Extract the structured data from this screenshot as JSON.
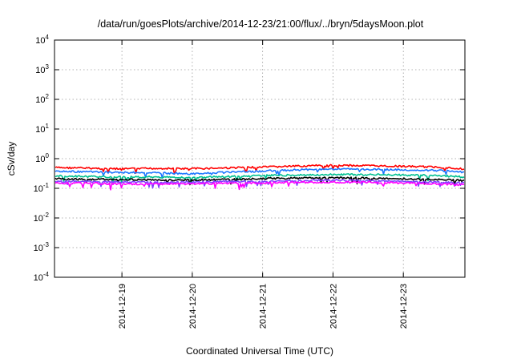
{
  "chart_data": {
    "type": "line",
    "title": "/data/run/goesPlots/archive/2014-12-23/21:00/flux/../bryn/5daysMoon.plot",
    "xlabel": "Coordinated Universal Time (UTC)",
    "ylabel": "cSv/day",
    "yscale": "log",
    "ylim": [
      0.0001,
      10000
    ],
    "y_ticks": [
      {
        "value": 0.0001,
        "base": "10",
        "exp": "-4"
      },
      {
        "value": 0.001,
        "base": "10",
        "exp": "-3"
      },
      {
        "value": 0.01,
        "base": "10",
        "exp": "-2"
      },
      {
        "value": 0.1,
        "base": "10",
        "exp": "-1"
      },
      {
        "value": 1,
        "base": "10",
        "exp": "0"
      },
      {
        "value": 10,
        "base": "10",
        "exp": "1"
      },
      {
        "value": 100,
        "base": "10",
        "exp": "2"
      },
      {
        "value": 1000,
        "base": "10",
        "exp": "3"
      },
      {
        "value": 10000,
        "base": "10",
        "exp": "4"
      }
    ],
    "xlim": [
      "2014-12-18T01:00",
      "2014-12-23T21:00"
    ],
    "x_ticks": [
      "2014-12-19",
      "2014-12-20",
      "2014-12-21",
      "2014-12-22",
      "2014-12-23"
    ],
    "grid": true,
    "x": [
      "2014-12-18T01:00",
      "2014-12-18T12:00",
      "2014-12-19T00:00",
      "2014-12-19T12:00",
      "2014-12-20T00:00",
      "2014-12-20T12:00",
      "2014-12-21T00:00",
      "2014-12-21T12:00",
      "2014-12-22T00:00",
      "2014-12-22T12:00",
      "2014-12-23T00:00",
      "2014-12-23T12:00",
      "2014-12-23T21:00"
    ],
    "series": [
      {
        "color": "#ff0000",
        "values": [
          0.5,
          0.48,
          0.45,
          0.47,
          0.46,
          0.49,
          0.52,
          0.56,
          0.6,
          0.58,
          0.55,
          0.52,
          0.45
        ]
      },
      {
        "color": "#1e78ff",
        "values": [
          0.38,
          0.36,
          0.34,
          0.33,
          0.31,
          0.35,
          0.38,
          0.42,
          0.45,
          0.44,
          0.42,
          0.4,
          0.35
        ]
      },
      {
        "color": "#00c090",
        "values": [
          0.26,
          0.25,
          0.24,
          0.24,
          0.23,
          0.25,
          0.27,
          0.28,
          0.29,
          0.29,
          0.28,
          0.27,
          0.24
        ]
      },
      {
        "color": "#000000",
        "values": [
          0.21,
          0.2,
          0.2,
          0.19,
          0.19,
          0.2,
          0.21,
          0.22,
          0.23,
          0.22,
          0.21,
          0.2,
          0.18
        ]
      },
      {
        "color": "#8040ff",
        "values": [
          0.17,
          0.17,
          0.16,
          0.16,
          0.16,
          0.17,
          0.17,
          0.18,
          0.19,
          0.18,
          0.17,
          0.16,
          0.15
        ]
      },
      {
        "color": "#ff00ff",
        "values": [
          0.15,
          0.15,
          0.14,
          0.14,
          0.14,
          0.15,
          0.15,
          0.16,
          0.16,
          0.16,
          0.15,
          0.14,
          0.13
        ]
      }
    ]
  }
}
